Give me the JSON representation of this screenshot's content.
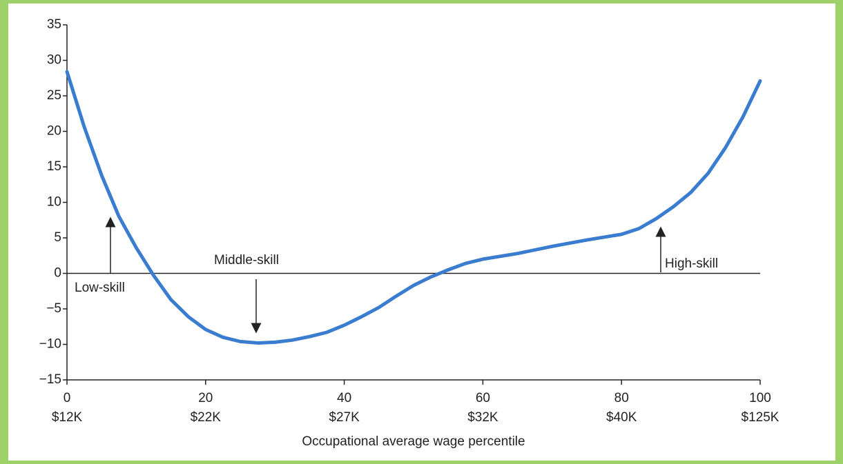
{
  "chart_data": {
    "type": "line",
    "x": [
      0,
      2.5,
      5,
      7.5,
      10,
      12.5,
      15,
      17.5,
      20,
      22.5,
      25,
      27.5,
      30,
      32.5,
      35,
      37.5,
      40,
      42.5,
      45,
      47.5,
      50,
      52.5,
      55,
      57.5,
      60,
      65,
      70,
      75,
      80,
      82.5,
      85,
      87.5,
      90,
      92.5,
      95,
      97.5,
      100
    ],
    "series": [
      {
        "color": "#3a7dd0",
        "values": [
          28.4,
          20.6,
          13.8,
          8,
          3.6,
          -0.3,
          -3.7,
          -6.1,
          -7.9,
          -9,
          -9.6,
          -9.8,
          -9.7,
          -9.4,
          -8.9,
          -8.3,
          -7.3,
          -6.1,
          -4.8,
          -3.2,
          -1.7,
          -0.5,
          0.5,
          1.4,
          2,
          2.8,
          3.8,
          4.7,
          5.5,
          6.3,
          7.7,
          9.4,
          11.4,
          14.1,
          17.7,
          22,
          27.1
        ]
      }
    ],
    "xlim": [
      0,
      100
    ],
    "xticks": [
      0,
      20,
      40,
      60,
      80,
      100
    ],
    "xtick_sublabels": [
      "$12K",
      "$22K",
      "$27K",
      "$32K",
      "$40K",
      "$125K"
    ],
    "ylim": [
      -15,
      35
    ],
    "yticks": [
      {
        "value": -15,
        "label": "−15"
      },
      {
        "value": -10,
        "label": "−10"
      },
      {
        "value": -5,
        "label": "−5"
      },
      0,
      5,
      10,
      15,
      20,
      25,
      30,
      35
    ],
    "xlabel": "Occupational average wage percentile",
    "annotations": [
      "Low-skill",
      "Middle-skill",
      "High-skill"
    ]
  }
}
